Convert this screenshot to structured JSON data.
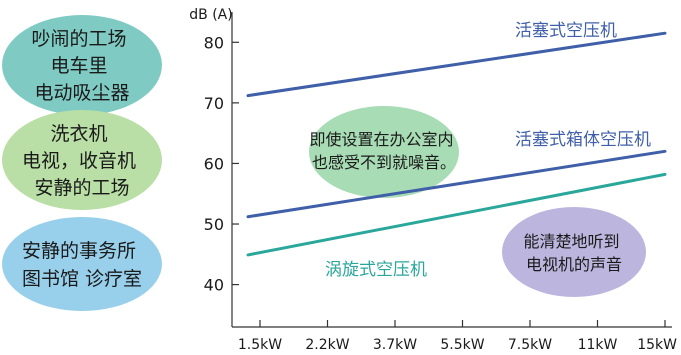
{
  "chart_data": {
    "type": "line",
    "ylabel": "dB (A)",
    "categories": [
      "1.5kW",
      "2.2kW",
      "3.7kW",
      "5.5kW",
      "7.5kW",
      "11kW",
      "15kW"
    ],
    "y_ticks": [
      40,
      50,
      60,
      70,
      80
    ],
    "ylim": [
      33,
      85
    ],
    "grid": false,
    "series": [
      {
        "name": "活塞式空压机",
        "start": 71.2,
        "end": 81.5,
        "color": "#3f5fa9"
      },
      {
        "name": "活塞式箱体空压机",
        "start": 51.2,
        "end": 62.0,
        "color": "#3f5fa9"
      },
      {
        "name": "涡旋式空压机",
        "start": 44.9,
        "end": 58.2,
        "color": "#2aa79b"
      }
    ],
    "in_chart_notes": [
      {
        "lines": [
          "即使设置在办公室内",
          "也感受不到就噪音。"
        ],
        "fill": "#a8dcb4"
      },
      {
        "lines": [
          "能清楚地听到",
          "电视机的声音"
        ],
        "fill": "#bcb5de"
      }
    ]
  },
  "reference_labels": [
    {
      "lines": [
        "吵闹的工场",
        "电车里",
        "电动吸尘器"
      ],
      "fill": "#7fcbc4"
    },
    {
      "lines": [
        "洗衣机",
        "电视，收音机",
        "安静的工场"
      ],
      "fill": "#b9dfa6"
    },
    {
      "lines": [
        "安静的事务所",
        "图书馆 诊疗室"
      ],
      "fill": "#98d0ec"
    }
  ]
}
